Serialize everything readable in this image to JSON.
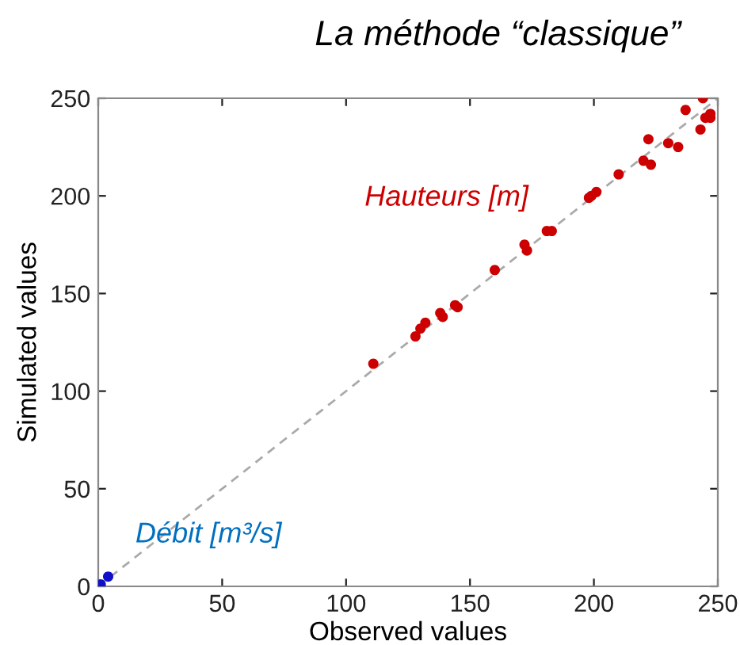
{
  "chart_data": {
    "type": "scatter",
    "title": "La méthode “classique”",
    "xlabel": "Observed values",
    "ylabel": "Simulated values",
    "xlim": [
      0,
      250
    ],
    "ylim": [
      0,
      250
    ],
    "xticks": [
      0,
      50,
      100,
      150,
      200,
      250
    ],
    "yticks": [
      0,
      50,
      100,
      150,
      200,
      250
    ],
    "grid": false,
    "legend": false,
    "marker": "circle",
    "series": [
      {
        "name": "Hauteurs [m]",
        "color": "#cc0000",
        "x": [
          111,
          128,
          130,
          132,
          138,
          139,
          144,
          145,
          160,
          172,
          173,
          181,
          183,
          198,
          199,
          201,
          210,
          220,
          223,
          222,
          230,
          234,
          237,
          243,
          244,
          245,
          247,
          247
        ],
        "values": [
          114,
          128,
          132,
          135,
          140,
          138,
          144,
          143,
          162,
          175,
          172,
          182,
          182,
          199,
          200,
          202,
          211,
          218,
          216,
          229,
          227,
          225,
          244,
          234,
          250,
          240,
          242,
          240
        ]
      },
      {
        "name": "Débit [m³/s]",
        "color": "#1010c8",
        "x": [
          1,
          4
        ],
        "values": [
          1,
          5
        ]
      },
      {
        "type": "line",
        "color": "#aaaaaa",
        "line_style": "dashed",
        "marker": "none",
        "x": [
          0,
          250
        ],
        "values": [
          0,
          250
        ]
      }
    ]
  }
}
